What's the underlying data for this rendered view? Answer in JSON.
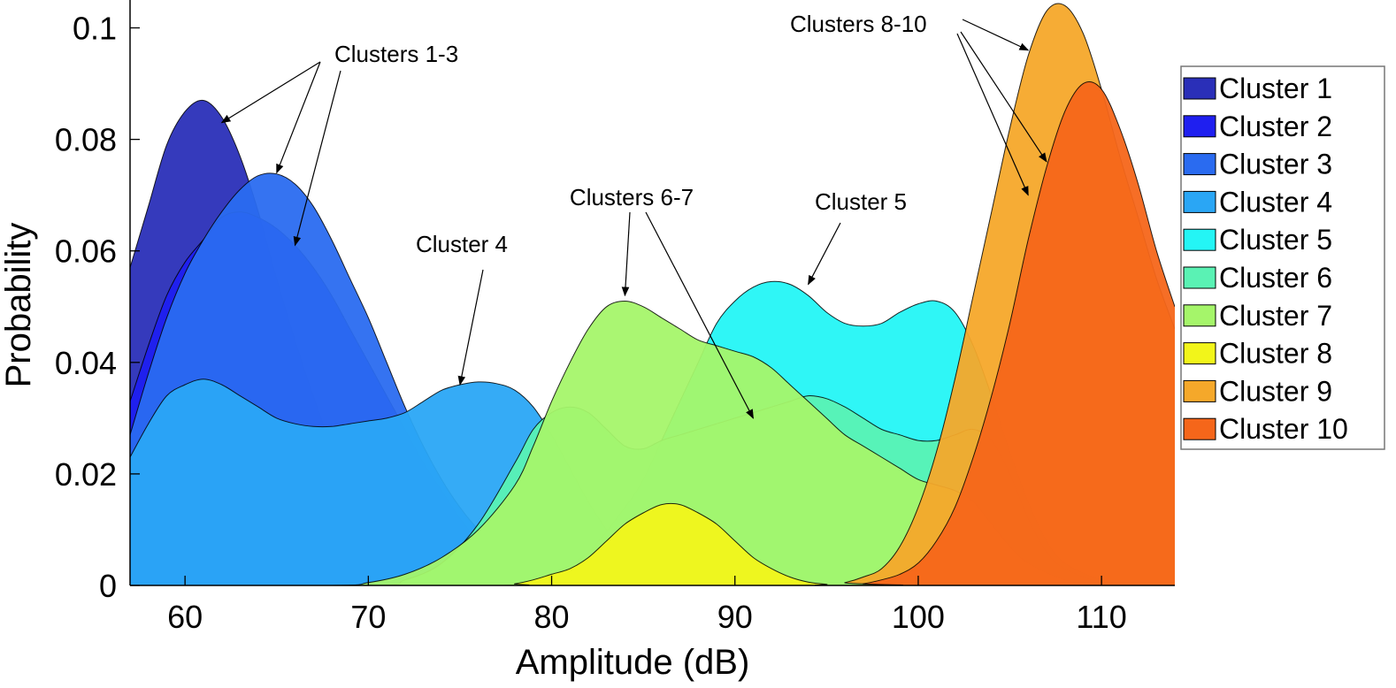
{
  "chart_data": {
    "type": "area",
    "xlabel": "Amplitude (dB)",
    "ylabel": "Probability",
    "xlim": [
      57,
      114
    ],
    "ylim": [
      0,
      0.105
    ],
    "x_ticks": [
      60,
      70,
      80,
      90,
      100,
      110
    ],
    "y_ticks": [
      0,
      0.02,
      0.04,
      0.06,
      0.08,
      0.1
    ],
    "y_tick_labels": [
      "0",
      "0.02",
      "0.04",
      "0.06",
      "0.08",
      "0.1"
    ],
    "legend_position": "right",
    "series": [
      {
        "name": "Cluster 1",
        "color": "#2a2fb8",
        "points": [
          [
            57,
            0.057
          ],
          [
            58,
            0.068
          ],
          [
            59,
            0.079
          ],
          [
            60,
            0.085
          ],
          [
            61,
            0.087
          ],
          [
            62,
            0.084
          ],
          [
            63,
            0.077
          ],
          [
            64,
            0.067
          ],
          [
            65,
            0.055
          ],
          [
            66,
            0.044
          ],
          [
            67,
            0.034
          ],
          [
            68,
            0.025
          ],
          [
            69,
            0.018
          ],
          [
            70,
            0.012
          ],
          [
            71,
            0.008
          ],
          [
            72,
            0.005
          ],
          [
            73,
            0.003
          ],
          [
            74,
            0.0015
          ],
          [
            75,
            0.0007
          ],
          [
            76,
            0.0003
          ],
          [
            78,
            0.0
          ],
          [
            114,
            0.0
          ]
        ]
      },
      {
        "name": "Cluster 2",
        "color": "#1f1ff0",
        "points": [
          [
            57,
            0.033
          ],
          [
            58,
            0.043
          ],
          [
            59,
            0.052
          ],
          [
            60,
            0.058
          ],
          [
            61,
            0.062
          ],
          [
            62,
            0.066
          ],
          [
            63,
            0.067
          ],
          [
            64,
            0.066
          ],
          [
            65,
            0.064
          ],
          [
            66,
            0.061
          ],
          [
            67,
            0.057
          ],
          [
            68,
            0.052
          ],
          [
            69,
            0.046
          ],
          [
            70,
            0.04
          ],
          [
            71,
            0.034
          ],
          [
            72,
            0.028
          ],
          [
            73,
            0.022
          ],
          [
            74,
            0.017
          ],
          [
            75,
            0.012
          ],
          [
            76,
            0.008
          ],
          [
            77,
            0.005
          ],
          [
            78,
            0.003
          ],
          [
            80,
            0.001
          ],
          [
            82,
            0.0
          ],
          [
            114,
            0.0
          ]
        ]
      },
      {
        "name": "Cluster 3",
        "color": "#2a6bf0",
        "points": [
          [
            57,
            0.027
          ],
          [
            58,
            0.038
          ],
          [
            59,
            0.048
          ],
          [
            60,
            0.056
          ],
          [
            61,
            0.062
          ],
          [
            62,
            0.067
          ],
          [
            63,
            0.071
          ],
          [
            64,
            0.0735
          ],
          [
            65,
            0.0738
          ],
          [
            66,
            0.072
          ],
          [
            67,
            0.068
          ],
          [
            68,
            0.062
          ],
          [
            69,
            0.055
          ],
          [
            70,
            0.048
          ],
          [
            71,
            0.04
          ],
          [
            72,
            0.032
          ],
          [
            73,
            0.025
          ],
          [
            74,
            0.019
          ],
          [
            75,
            0.014
          ],
          [
            76,
            0.01
          ],
          [
            77,
            0.007
          ],
          [
            78,
            0.004
          ],
          [
            80,
            0.0015
          ],
          [
            82,
            0.0005
          ],
          [
            84,
            0.0
          ],
          [
            114,
            0.0
          ]
        ]
      },
      {
        "name": "Cluster 4",
        "color": "#2aa6f5",
        "points": [
          [
            57,
            0.023
          ],
          [
            58,
            0.029
          ],
          [
            59,
            0.034
          ],
          [
            60,
            0.036
          ],
          [
            61,
            0.037
          ],
          [
            62,
            0.036
          ],
          [
            63,
            0.034
          ],
          [
            64,
            0.032
          ],
          [
            65,
            0.03
          ],
          [
            66,
            0.029
          ],
          [
            67,
            0.0285
          ],
          [
            68,
            0.0285
          ],
          [
            69,
            0.029
          ],
          [
            70,
            0.0295
          ],
          [
            71,
            0.03
          ],
          [
            72,
            0.031
          ],
          [
            73,
            0.033
          ],
          [
            74,
            0.035
          ],
          [
            75,
            0.036
          ],
          [
            76,
            0.0365
          ],
          [
            77,
            0.0362
          ],
          [
            78,
            0.035
          ],
          [
            79,
            0.032
          ],
          [
            80,
            0.027
          ],
          [
            81,
            0.021
          ],
          [
            82,
            0.015
          ],
          [
            83,
            0.01
          ],
          [
            84,
            0.006
          ],
          [
            85,
            0.003
          ],
          [
            86,
            0.0015
          ],
          [
            88,
            0.0003
          ],
          [
            90,
            0.0
          ],
          [
            114,
            0.0
          ]
        ]
      },
      {
        "name": "Cluster 5",
        "color": "#24f5f5",
        "points": [
          [
            57,
            0.0
          ],
          [
            76,
            0.0
          ],
          [
            78,
            0.0005
          ],
          [
            80,
            0.002
          ],
          [
            82,
            0.006
          ],
          [
            84,
            0.014
          ],
          [
            85,
            0.019
          ],
          [
            86,
            0.026
          ],
          [
            87,
            0.033
          ],
          [
            88,
            0.04
          ],
          [
            89,
            0.047
          ],
          [
            90,
            0.051
          ],
          [
            91,
            0.0535
          ],
          [
            92,
            0.0545
          ],
          [
            93,
            0.054
          ],
          [
            94,
            0.052
          ],
          [
            95,
            0.049
          ],
          [
            96,
            0.047
          ],
          [
            97,
            0.0465
          ],
          [
            98,
            0.047
          ],
          [
            99,
            0.049
          ],
          [
            100,
            0.0505
          ],
          [
            101,
            0.051
          ],
          [
            102,
            0.049
          ],
          [
            103,
            0.043
          ],
          [
            104,
            0.034
          ],
          [
            105,
            0.024
          ],
          [
            106,
            0.015
          ],
          [
            107,
            0.008
          ],
          [
            108,
            0.004
          ],
          [
            110,
            0.001
          ],
          [
            112,
            0.0
          ],
          [
            114,
            0.0
          ]
        ]
      },
      {
        "name": "Cluster 6",
        "color": "#5af2b4",
        "points": [
          [
            57,
            0.0
          ],
          [
            70,
            0.0
          ],
          [
            72,
            0.001
          ],
          [
            74,
            0.004
          ],
          [
            76,
            0.011
          ],
          [
            78,
            0.022
          ],
          [
            79,
            0.028
          ],
          [
            80,
            0.031
          ],
          [
            81,
            0.032
          ],
          [
            82,
            0.031
          ],
          [
            83,
            0.028
          ],
          [
            84,
            0.025
          ],
          [
            85,
            0.0245
          ],
          [
            86,
            0.026
          ],
          [
            87,
            0.027
          ],
          [
            88,
            0.028
          ],
          [
            89,
            0.029
          ],
          [
            90,
            0.03
          ],
          [
            91,
            0.031
          ],
          [
            92,
            0.032
          ],
          [
            93,
            0.033
          ],
          [
            94,
            0.034
          ],
          [
            95,
            0.0335
          ],
          [
            96,
            0.032
          ],
          [
            97,
            0.03
          ],
          [
            98,
            0.028
          ],
          [
            99,
            0.027
          ],
          [
            100,
            0.026
          ],
          [
            101,
            0.026
          ],
          [
            102,
            0.027
          ],
          [
            103,
            0.028
          ],
          [
            104,
            0.026
          ],
          [
            105,
            0.02
          ],
          [
            106,
            0.012
          ],
          [
            107,
            0.006
          ],
          [
            108,
            0.003
          ],
          [
            110,
            0.0005
          ],
          [
            112,
            0.0
          ],
          [
            114,
            0.0
          ]
        ]
      },
      {
        "name": "Cluster 7",
        "color": "#a5f56a",
        "points": [
          [
            57,
            0.0
          ],
          [
            68,
            0.0
          ],
          [
            70,
            0.0005
          ],
          [
            72,
            0.002
          ],
          [
            74,
            0.005
          ],
          [
            76,
            0.01
          ],
          [
            78,
            0.018
          ],
          [
            79,
            0.025
          ],
          [
            80,
            0.033
          ],
          [
            81,
            0.04
          ],
          [
            82,
            0.046
          ],
          [
            83,
            0.05
          ],
          [
            84,
            0.051
          ],
          [
            85,
            0.05
          ],
          [
            86,
            0.048
          ],
          [
            87,
            0.046
          ],
          [
            88,
            0.044
          ],
          [
            89,
            0.043
          ],
          [
            90,
            0.042
          ],
          [
            91,
            0.041
          ],
          [
            92,
            0.039
          ],
          [
            93,
            0.036
          ],
          [
            94,
            0.033
          ],
          [
            95,
            0.03
          ],
          [
            96,
            0.027
          ],
          [
            97,
            0.025
          ],
          [
            98,
            0.023
          ],
          [
            99,
            0.021
          ],
          [
            100,
            0.019
          ],
          [
            101,
            0.018
          ],
          [
            102,
            0.017
          ],
          [
            103,
            0.015
          ],
          [
            104,
            0.011
          ],
          [
            105,
            0.007
          ],
          [
            106,
            0.004
          ],
          [
            108,
            0.001
          ],
          [
            110,
            0.0
          ],
          [
            114,
            0.0
          ]
        ]
      },
      {
        "name": "Cluster 8",
        "color": "#f2f51a",
        "points": [
          [
            57,
            0.0
          ],
          [
            77,
            0.0
          ],
          [
            78,
            0.0003
          ],
          [
            79,
            0.001
          ],
          [
            80,
            0.002
          ],
          [
            81,
            0.003
          ],
          [
            82,
            0.005
          ],
          [
            83,
            0.008
          ],
          [
            84,
            0.011
          ],
          [
            85,
            0.013
          ],
          [
            86,
            0.0145
          ],
          [
            87,
            0.0145
          ],
          [
            88,
            0.013
          ],
          [
            89,
            0.011
          ],
          [
            90,
            0.008
          ],
          [
            91,
            0.005
          ],
          [
            92,
            0.003
          ],
          [
            93,
            0.0015
          ],
          [
            94,
            0.0006
          ],
          [
            95,
            0.0002
          ],
          [
            96,
            0.0
          ],
          [
            114,
            0.0
          ]
        ]
      },
      {
        "name": "Cluster 9",
        "color": "#f5a82a",
        "points": [
          [
            57,
            0.0
          ],
          [
            95,
            0.0
          ],
          [
            96,
            0.0005
          ],
          [
            97,
            0.0015
          ],
          [
            98,
            0.003
          ],
          [
            99,
            0.007
          ],
          [
            100,
            0.014
          ],
          [
            101,
            0.024
          ],
          [
            102,
            0.037
          ],
          [
            103,
            0.052
          ],
          [
            104,
            0.067
          ],
          [
            105,
            0.082
          ],
          [
            106,
            0.095
          ],
          [
            107,
            0.103
          ],
          [
            108,
            0.104
          ],
          [
            109,
            0.099
          ],
          [
            110,
            0.089
          ],
          [
            111,
            0.077
          ],
          [
            112,
            0.066
          ],
          [
            113,
            0.055
          ],
          [
            114,
            0.046
          ]
        ]
      },
      {
        "name": "Cluster 10",
        "color": "#f5661a",
        "points": [
          [
            57,
            0.0
          ],
          [
            96,
            0.0
          ],
          [
            97,
            0.0003
          ],
          [
            98,
            0.001
          ],
          [
            99,
            0.002
          ],
          [
            100,
            0.004
          ],
          [
            101,
            0.008
          ],
          [
            102,
            0.014
          ],
          [
            103,
            0.023
          ],
          [
            104,
            0.034
          ],
          [
            105,
            0.047
          ],
          [
            106,
            0.062
          ],
          [
            107,
            0.075
          ],
          [
            108,
            0.085
          ],
          [
            109,
            0.09
          ],
          [
            110,
            0.089
          ],
          [
            111,
            0.082
          ],
          [
            112,
            0.072
          ],
          [
            113,
            0.06
          ],
          [
            114,
            0.05
          ]
        ]
      }
    ],
    "annotations": [
      {
        "text": "Clusters 1-3",
        "points_to": [
          [
            62,
            0.083
          ],
          [
            65,
            0.074
          ],
          [
            66,
            0.061
          ]
        ]
      },
      {
        "text": "Cluster 4",
        "points_to": [
          [
            75,
            0.036
          ]
        ]
      },
      {
        "text": "Clusters 6-7",
        "points_to": [
          [
            84,
            0.052
          ],
          [
            91,
            0.03
          ]
        ]
      },
      {
        "text": "Cluster 5",
        "points_to": [
          [
            94,
            0.054
          ]
        ]
      },
      {
        "text": "Clusters 8-10",
        "points_to": [
          [
            106,
            0.096
          ],
          [
            107,
            0.076
          ],
          [
            106,
            0.07
          ]
        ]
      }
    ]
  }
}
